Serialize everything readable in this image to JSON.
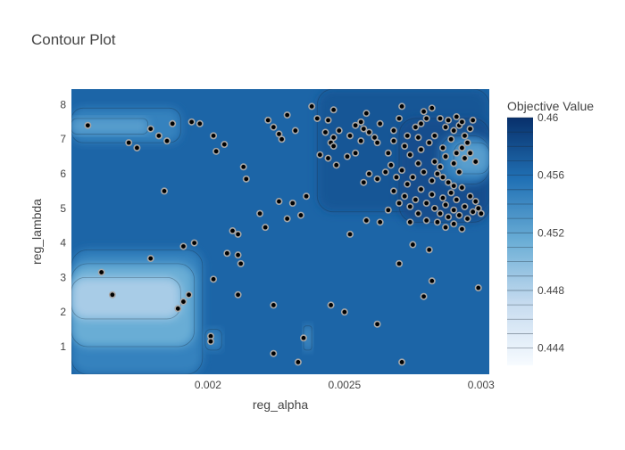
{
  "chart_data": {
    "type": "contour",
    "title": "Contour Plot",
    "xlabel": "reg_alpha",
    "ylabel": "reg_lambda",
    "xlim": [
      0.0015,
      0.00303
    ],
    "ylim": [
      0.2,
      8.45
    ],
    "x_ticks": [
      {
        "value": 0.002,
        "label": "0.002"
      },
      {
        "value": 0.0025,
        "label": "0.0025"
      },
      {
        "value": 0.003,
        "label": "0.003"
      }
    ],
    "y_ticks": [
      {
        "value": 1,
        "label": "1"
      },
      {
        "value": 2,
        "label": "2"
      },
      {
        "value": 3,
        "label": "3"
      },
      {
        "value": 4,
        "label": "4"
      },
      {
        "value": 5,
        "label": "5"
      },
      {
        "value": 6,
        "label": "6"
      },
      {
        "value": 7,
        "label": "7"
      },
      {
        "value": 8,
        "label": "8"
      }
    ],
    "colorbar": {
      "title": "Objective Value",
      "range": [
        0.4428,
        0.46
      ],
      "ticks": [
        {
          "value": 0.46,
          "label": "0.46"
        },
        {
          "value": 0.456,
          "label": "0.456"
        },
        {
          "value": 0.452,
          "label": "0.452"
        },
        {
          "value": 0.448,
          "label": "0.448"
        },
        {
          "value": 0.444,
          "label": "0.444"
        }
      ],
      "colors": [
        "#f7fbff",
        "#c6dbef",
        "#6baed6",
        "#2171b5",
        "#08306b"
      ]
    },
    "background_value": 0.4565,
    "regions": [
      {
        "x": [
          0.0015,
          0.0019
        ],
        "y": [
          1.8,
          3.0
        ],
        "value": 0.4485
      },
      {
        "x": [
          0.0015,
          0.00195
        ],
        "y": [
          1.0,
          3.4
        ],
        "value": 0.4515
      },
      {
        "x": [
          0.0015,
          0.00198
        ],
        "y": [
          0.2,
          3.8
        ],
        "value": 0.4545
      },
      {
        "x": [
          0.0015,
          0.00178
        ],
        "y": [
          7.15,
          7.6
        ],
        "value": 0.4525
      },
      {
        "x": [
          0.0015,
          0.0019
        ],
        "y": [
          6.9,
          7.9
        ],
        "value": 0.4545
      },
      {
        "x": [
          0.00235,
          0.00238
        ],
        "y": [
          0.9,
          1.6
        ],
        "value": 0.4535
      },
      {
        "x": [
          0.00199,
          0.00205
        ],
        "y": [
          0.9,
          1.5
        ],
        "value": 0.4545
      },
      {
        "x": [
          0.0029,
          0.00303
        ],
        "y": [
          6.0,
          6.9
        ],
        "value": 0.4525
      },
      {
        "x": [
          0.00285,
          0.00303
        ],
        "y": [
          5.7,
          7.1
        ],
        "value": 0.455
      },
      {
        "x": [
          0.0027,
          0.00303
        ],
        "y": [
          4.6,
          7.6
        ],
        "value": 0.458
      },
      {
        "x": [
          0.0024,
          0.00303
        ],
        "y": [
          4.9,
          8.45
        ],
        "value": 0.4575
      }
    ],
    "points": [
      [
        0.00156,
        7.4
      ],
      [
        0.00171,
        6.9
      ],
      [
        0.00174,
        6.75
      ],
      [
        0.00179,
        7.3
      ],
      [
        0.00182,
        7.1
      ],
      [
        0.00185,
        6.95
      ],
      [
        0.00187,
        7.45
      ],
      [
        0.00194,
        7.5
      ],
      [
        0.00197,
        7.45
      ],
      [
        0.00202,
        7.1
      ],
      [
        0.00203,
        6.65
      ],
      [
        0.00206,
        6.85
      ],
      [
        0.00213,
        6.2
      ],
      [
        0.00214,
        5.85
      ],
      [
        0.00184,
        5.5
      ],
      [
        0.00219,
        4.85
      ],
      [
        0.00221,
        4.45
      ],
      [
        0.00222,
        7.55
      ],
      [
        0.00224,
        7.35
      ],
      [
        0.00226,
        7.15
      ],
      [
        0.00227,
        7.0
      ],
      [
        0.00229,
        7.7
      ],
      [
        0.00231,
        5.15
      ],
      [
        0.00232,
        7.25
      ],
      [
        0.00234,
        4.8
      ],
      [
        0.00236,
        5.35
      ],
      [
        0.00229,
        4.7
      ],
      [
        0.00226,
        5.2
      ],
      [
        0.00209,
        4.35
      ],
      [
        0.00211,
        4.25
      ],
      [
        0.00207,
        3.7
      ],
      [
        0.00211,
        3.65
      ],
      [
        0.00212,
        3.4
      ],
      [
        0.00195,
        4.0
      ],
      [
        0.00191,
        3.9
      ],
      [
        0.00179,
        3.55
      ],
      [
        0.00161,
        3.15
      ],
      [
        0.00165,
        2.5
      ],
      [
        0.00193,
        2.5
      ],
      [
        0.00191,
        2.3
      ],
      [
        0.00189,
        2.1
      ],
      [
        0.00202,
        2.95
      ],
      [
        0.00211,
        2.5
      ],
      [
        0.00224,
        2.2
      ],
      [
        0.00245,
        2.2
      ],
      [
        0.0025,
        2.0
      ],
      [
        0.00262,
        1.65
      ],
      [
        0.00201,
        1.3
      ],
      [
        0.00201,
        1.15
      ],
      [
        0.00235,
        1.25
      ],
      [
        0.00224,
        0.8
      ],
      [
        0.00233,
        0.55
      ],
      [
        0.00271,
        0.55
      ],
      [
        0.00252,
        4.25
      ],
      [
        0.0027,
        3.4
      ],
      [
        0.00279,
        2.45
      ],
      [
        0.00282,
        2.9
      ],
      [
        0.00299,
        2.7
      ],
      [
        0.00275,
        3.95
      ],
      [
        0.00281,
        3.8
      ],
      [
        0.00263,
        4.6
      ],
      [
        0.00258,
        4.65
      ],
      [
        0.00238,
        7.95
      ],
      [
        0.0024,
        7.6
      ],
      [
        0.00244,
        7.55
      ],
      [
        0.00246,
        7.85
      ],
      [
        0.00243,
        7.2
      ],
      [
        0.00246,
        7.05
      ],
      [
        0.00248,
        7.25
      ],
      [
        0.00245,
        6.9
      ],
      [
        0.00246,
        6.8
      ],
      [
        0.00241,
        6.55
      ],
      [
        0.00244,
        6.45
      ],
      [
        0.00247,
        6.25
      ],
      [
        0.00251,
        6.5
      ],
      [
        0.00252,
        7.1
      ],
      [
        0.00254,
        7.4
      ],
      [
        0.00256,
        7.5
      ],
      [
        0.00258,
        7.75
      ],
      [
        0.00257,
        7.3
      ],
      [
        0.00259,
        7.2
      ],
      [
        0.00261,
        7.05
      ],
      [
        0.00263,
        7.45
      ],
      [
        0.00262,
        6.9
      ],
      [
        0.00256,
        6.95
      ],
      [
        0.00254,
        6.6
      ],
      [
        0.00257,
        5.75
      ],
      [
        0.00259,
        6.0
      ],
      [
        0.00262,
        5.85
      ],
      [
        0.00265,
        6.05
      ],
      [
        0.00266,
        6.6
      ],
      [
        0.00268,
        7.25
      ],
      [
        0.0027,
        7.6
      ],
      [
        0.00271,
        7.95
      ],
      [
        0.00273,
        7.1
      ],
      [
        0.00268,
        6.95
      ],
      [
        0.00272,
        6.8
      ],
      [
        0.00274,
        6.55
      ],
      [
        0.00276,
        7.35
      ],
      [
        0.00277,
        7.05
      ],
      [
        0.00278,
        7.45
      ],
      [
        0.00279,
        7.8
      ],
      [
        0.0028,
        7.6
      ],
      [
        0.00282,
        7.9
      ],
      [
        0.00281,
        6.9
      ],
      [
        0.00283,
        7.1
      ],
      [
        0.00285,
        7.6
      ],
      [
        0.00287,
        7.35
      ],
      [
        0.00288,
        7.55
      ],
      [
        0.00289,
        7.0
      ],
      [
        0.0029,
        7.25
      ],
      [
        0.00291,
        7.65
      ],
      [
        0.00292,
        7.4
      ],
      [
        0.00293,
        7.5
      ],
      [
        0.00294,
        7.1
      ],
      [
        0.00295,
        6.9
      ],
      [
        0.00296,
        7.3
      ],
      [
        0.00297,
        7.55
      ],
      [
        0.00293,
        6.75
      ],
      [
        0.00291,
        6.6
      ],
      [
        0.00296,
        6.6
      ],
      [
        0.00298,
        6.35
      ],
      [
        0.00294,
        6.45
      ],
      [
        0.0029,
        6.3
      ],
      [
        0.00287,
        6.5
      ],
      [
        0.00285,
        6.2
      ],
      [
        0.00284,
        6.0
      ],
      [
        0.00282,
        5.8
      ],
      [
        0.00279,
        6.05
      ],
      [
        0.00277,
        6.3
      ],
      [
        0.00275,
        5.9
      ],
      [
        0.00273,
        5.7
      ],
      [
        0.00271,
        6.1
      ],
      [
        0.00269,
        5.9
      ],
      [
        0.00267,
        6.25
      ],
      [
        0.00272,
        5.35
      ],
      [
        0.00274,
        5.05
      ],
      [
        0.00276,
        5.25
      ],
      [
        0.00278,
        5.55
      ],
      [
        0.0028,
        5.15
      ],
      [
        0.00282,
        5.4
      ],
      [
        0.00283,
        5.0
      ],
      [
        0.00285,
        4.85
      ],
      [
        0.00286,
        5.3
      ],
      [
        0.00287,
        5.1
      ],
      [
        0.00288,
        4.75
      ],
      [
        0.00289,
        5.45
      ],
      [
        0.0029,
        4.95
      ],
      [
        0.00291,
        5.25
      ],
      [
        0.00292,
        4.8
      ],
      [
        0.00293,
        5.6
      ],
      [
        0.00294,
        5.05
      ],
      [
        0.00295,
        4.7
      ],
      [
        0.00296,
        5.35
      ],
      [
        0.00297,
        4.9
      ],
      [
        0.00298,
        5.2
      ],
      [
        0.00299,
        5.0
      ],
      [
        0.003,
        4.85
      ],
      [
        0.00288,
        5.75
      ],
      [
        0.00286,
        5.9
      ],
      [
        0.0029,
        5.65
      ],
      [
        0.00292,
        6.05
      ],
      [
        0.00284,
        4.6
      ],
      [
        0.00287,
        4.45
      ],
      [
        0.0029,
        4.55
      ],
      [
        0.00293,
        4.4
      ],
      [
        0.0028,
        4.65
      ],
      [
        0.00277,
        4.85
      ],
      [
        0.00274,
        4.6
      ],
      [
        0.0027,
        5.15
      ],
      [
        0.00268,
        5.5
      ],
      [
        0.00266,
        4.95
      ],
      [
        0.00283,
        6.35
      ],
      [
        0.00286,
        6.75
      ],
      [
        0.00278,
        6.7
      ]
    ]
  }
}
